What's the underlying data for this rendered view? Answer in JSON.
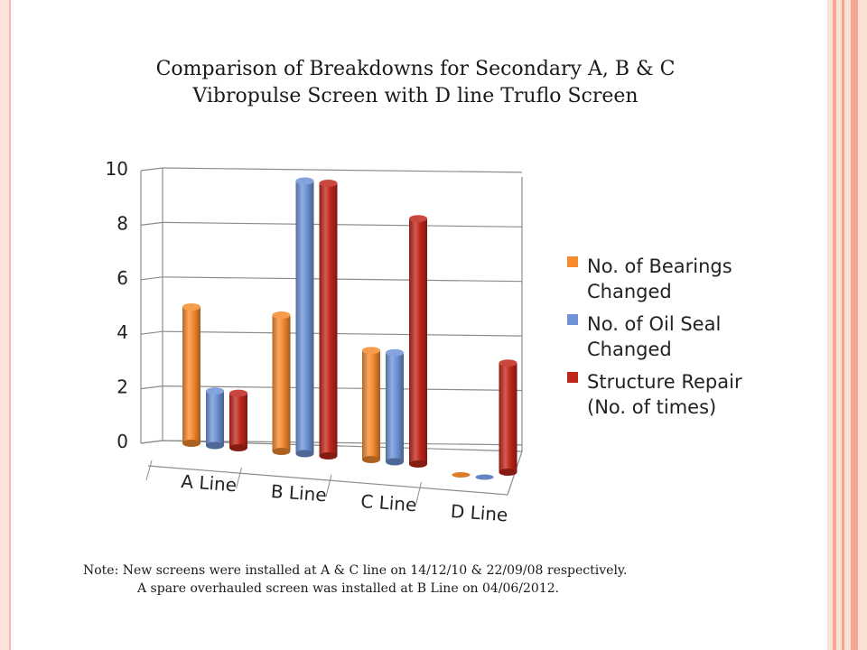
{
  "title": {
    "line1": "Comparison of  Breakdowns for Secondary A, B & C",
    "line2": "Vibropulse Screen with D line Truflo Screen"
  },
  "note": {
    "line1": "Note:  New screens were installed at A & C line on 14/12/10 & 22/09/08 respectively.",
    "line2": "A spare overhauled screen was installed at B Line on 04/06/2012."
  },
  "colors": {
    "bearings": "#f58a2e",
    "oil_seal": "#6f93d6",
    "structure": "#c0271b",
    "grid": "#8c8c8c",
    "slide_accent": "#f3a894"
  },
  "chart_data": {
    "type": "bar",
    "style": "3d-cylinder",
    "categories": [
      "A Line",
      "B Line",
      "C Line",
      "D Line"
    ],
    "series": [
      {
        "name": "No. of Bearings Changed",
        "values": [
          5,
          5,
          4,
          0
        ]
      },
      {
        "name": "No. of Oil Seal Changed",
        "values": [
          2,
          10,
          4,
          0
        ]
      },
      {
        "name": "Structure Repair (No. of times)",
        "values": [
          2,
          10,
          9,
          4
        ]
      }
    ],
    "yticks": [
      "0",
      "2",
      "4",
      "6",
      "8",
      "10"
    ],
    "ylim": [
      0,
      10
    ],
    "grid": true,
    "legend_position": "right"
  }
}
